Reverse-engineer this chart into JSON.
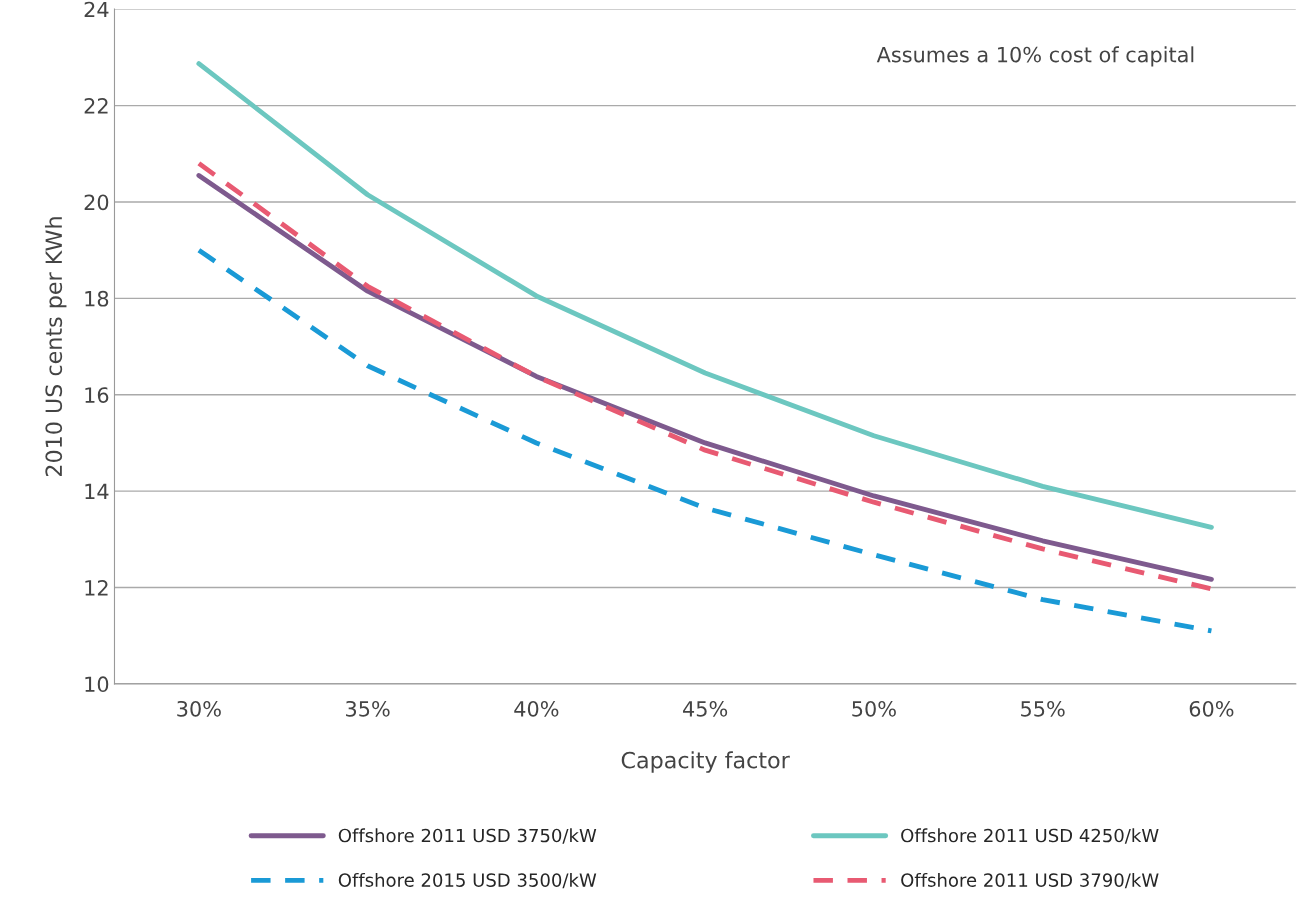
{
  "chart_data": {
    "type": "line",
    "xlabel": "Capacity factor",
    "ylabel": "2010 US cents per KWh",
    "categories": [
      "30%",
      "35%",
      "40%",
      "45%",
      "50%",
      "55%",
      "60%"
    ],
    "ylim": [
      10,
      24
    ],
    "yticks": [
      10,
      12,
      14,
      16,
      18,
      20,
      22,
      24
    ],
    "grid": "y",
    "legend": "bottom",
    "marker": "none",
    "annotations": [
      "Assumes a 10% cost of capital"
    ],
    "series": [
      {
        "name": "Offshore 2011 USD 3750/kW",
        "color": "#7e5a8e",
        "line_style": "solid",
        "values": [
          20.55,
          18.15,
          16.38,
          15.0,
          13.9,
          12.97,
          12.17
        ]
      },
      {
        "name": "Offshore 2015 USD 3500/kW",
        "color": "#1a9ad6",
        "line_style": "dashed",
        "values": [
          19.0,
          16.6,
          15.0,
          13.65,
          12.68,
          11.75,
          11.1
        ]
      },
      {
        "name": "Offshore 2011 USD 4250/kW",
        "color": "#6cc7c0",
        "line_style": "solid",
        "values": [
          22.87,
          20.15,
          18.05,
          16.45,
          15.15,
          14.1,
          13.25
        ]
      },
      {
        "name": "Offshore 2011 USD 3790/kW",
        "color": "#e85a72",
        "line_style": "dashed",
        "values": [
          20.8,
          18.25,
          16.38,
          14.85,
          13.77,
          12.8,
          11.97
        ]
      }
    ]
  }
}
